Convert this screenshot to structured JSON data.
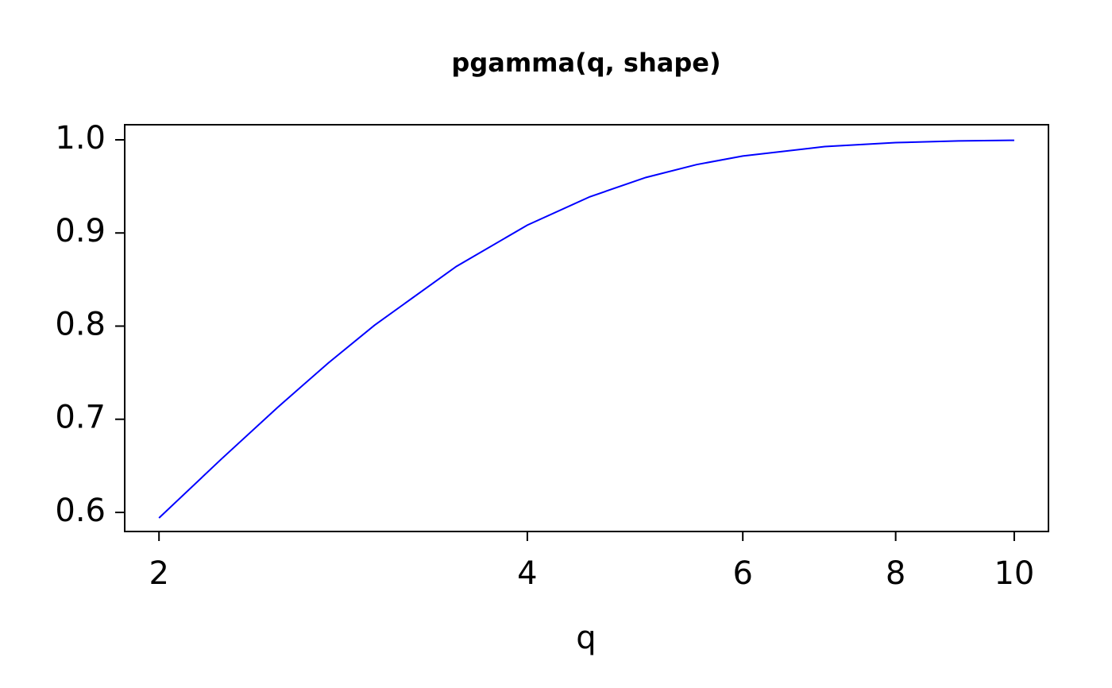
{
  "chart_data": {
    "type": "line",
    "title": "pgamma(q, shape)",
    "x_label": "q",
    "x": [
      2,
      2.25,
      2.5,
      2.75,
      3,
      3.5,
      4,
      4.5,
      5,
      5.5,
      6,
      7,
      8,
      9,
      10
    ],
    "series": [
      {
        "name": "pgamma",
        "color": "#0000ff",
        "values": [
          0.594,
          0.6575,
          0.7127,
          0.7603,
          0.8009,
          0.8641,
          0.9084,
          0.9389,
          0.9596,
          0.9734,
          0.9826,
          0.9927,
          0.997,
          0.9988,
          0.9995
        ]
      }
    ],
    "x_log": true,
    "xlim": [
      1.875,
      10.665
    ],
    "xticks": [
      2,
      4,
      6,
      8,
      10
    ],
    "ylim": [
      0.5795,
      1.0162
    ],
    "yticks": [
      0.6,
      0.7,
      0.8,
      0.9,
      {
        "value": 1,
        "label": "1.0"
      }
    ]
  }
}
